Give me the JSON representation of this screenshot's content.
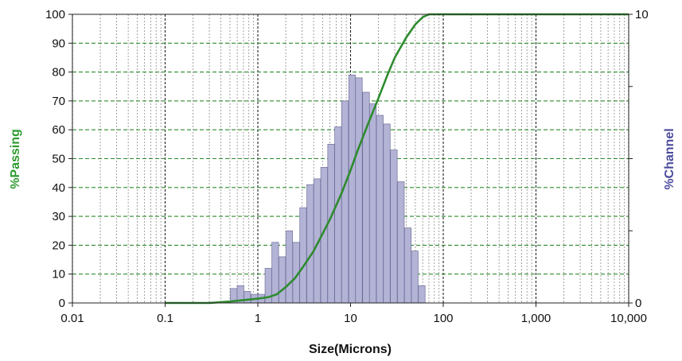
{
  "chart_data": {
    "type": "bar",
    "title": "",
    "xlabel": "Size(Microns)",
    "ylabel_left": "%Passing",
    "ylabel_right": "%Channel",
    "x_scale": "log",
    "xlim": [
      0.01,
      10000
    ],
    "x_ticks": [
      0.01,
      0.1,
      1,
      10,
      100,
      1000,
      10000
    ],
    "x_tick_labels": [
      "0.01",
      "0.1",
      "1",
      "10",
      "100",
      "1,000",
      "10,000"
    ],
    "y_left_lim": [
      0,
      100
    ],
    "y_left_ticks": [
      0,
      10,
      20,
      30,
      40,
      50,
      60,
      70,
      80,
      90,
      100
    ],
    "y_right_lim": [
      0,
      10
    ],
    "y_right_tick_labels": [
      "0",
      "10"
    ],
    "grid": true,
    "colors": {
      "passing_line": "#2e8b2e",
      "channel_bars": "#b3b3d6",
      "channel_bar_edge": "#6f6f9a",
      "grid_major": "#2e8b2e",
      "grid_minor": "#8c8c8c",
      "passing_label": "#2e9a2e",
      "channel_label": "#4b4b9c"
    },
    "series": [
      {
        "type": "bar",
        "axis": "right",
        "x": [
          0.55,
          0.65,
          0.77,
          0.92,
          1.09,
          1.3,
          1.54,
          1.83,
          2.18,
          2.59,
          3.08,
          3.67,
          4.36,
          5.19,
          6.17,
          7.34,
          8.72,
          10.4,
          12.3,
          14.7,
          17.4,
          20.7,
          24.6,
          29.3,
          34.9,
          41.5,
          49.3,
          58.6
        ],
        "values": [
          0.5,
          0.6,
          0.4,
          0.3,
          0.3,
          1.2,
          2.1,
          1.6,
          2.5,
          2.1,
          3.3,
          4.1,
          4.3,
          4.7,
          5.5,
          6.1,
          7.0,
          7.9,
          7.8,
          7.3,
          6.9,
          6.5,
          6.2,
          5.3,
          4.2,
          2.6,
          1.8,
          0.6
        ]
      },
      {
        "type": "line",
        "axis": "left",
        "x": [
          0.1,
          0.3,
          0.5,
          0.7,
          1.0,
          1.3,
          1.6,
          2.0,
          2.5,
          3.0,
          4.0,
          5.0,
          6.0,
          8.0,
          10,
          12,
          15,
          20,
          25,
          30,
          40,
          50,
          60,
          70,
          100,
          1000,
          10000
        ],
        "values": [
          0,
          0,
          0.5,
          1.0,
          1.5,
          2.0,
          3.0,
          5.5,
          8.5,
          12.0,
          18.0,
          24.0,
          29.0,
          38.0,
          46.0,
          53.0,
          61.0,
          71.0,
          79.0,
          85.0,
          92.0,
          96.5,
          99.0,
          100,
          100,
          100,
          100
        ]
      }
    ]
  }
}
